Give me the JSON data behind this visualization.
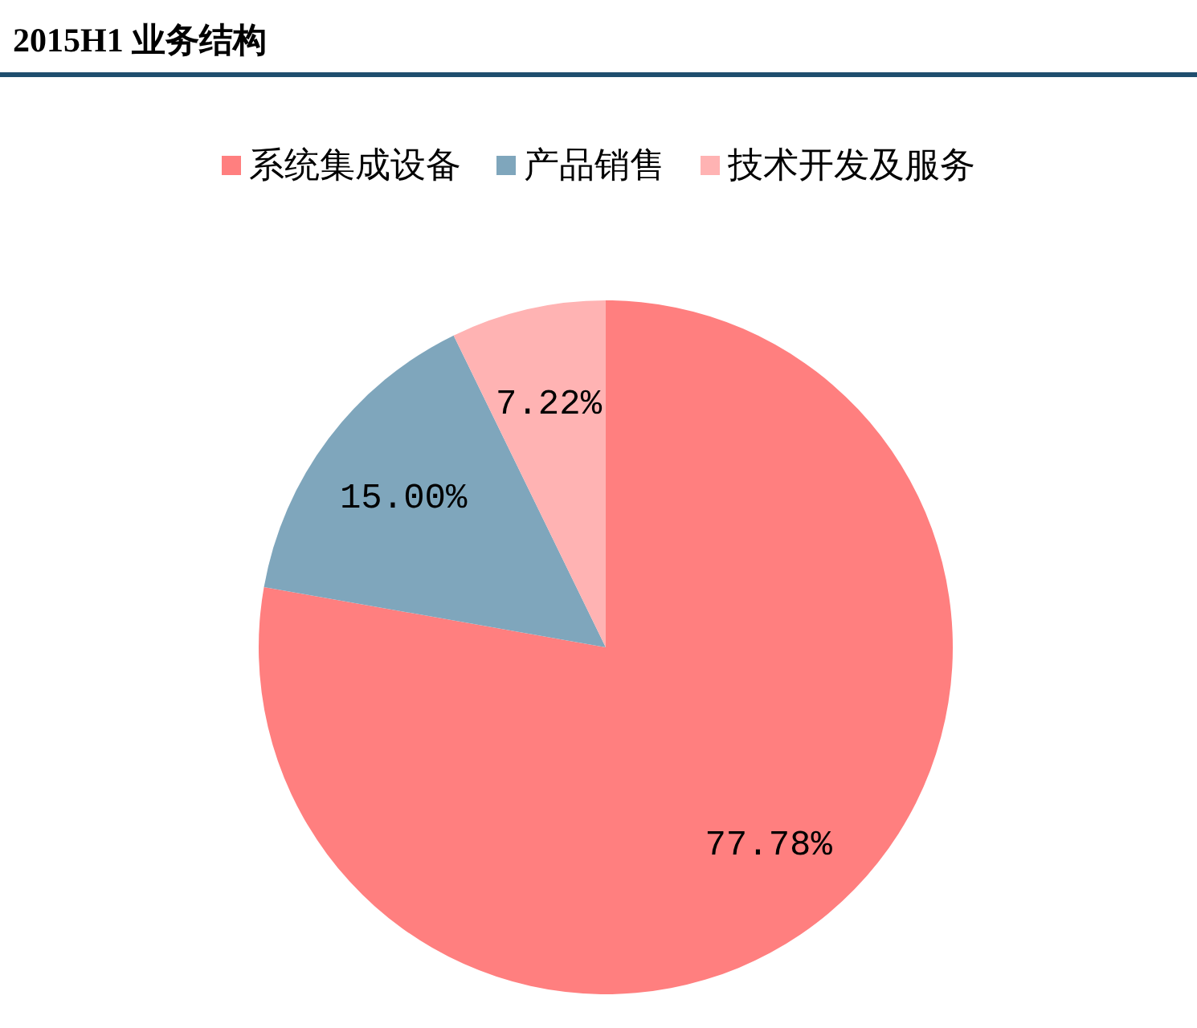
{
  "chart_data": {
    "type": "pie",
    "title": "2015H1 业务结构",
    "categories": [
      "系统集成设备",
      "产品销售",
      "技术开发及服务"
    ],
    "values": [
      77.78,
      15.0,
      7.22
    ],
    "colors": [
      "#ff7f7f",
      "#7fa6bc",
      "#ffb3b3"
    ],
    "value_labels": [
      "77.78%",
      "15.00%",
      "7.22%"
    ],
    "legend": "top"
  }
}
